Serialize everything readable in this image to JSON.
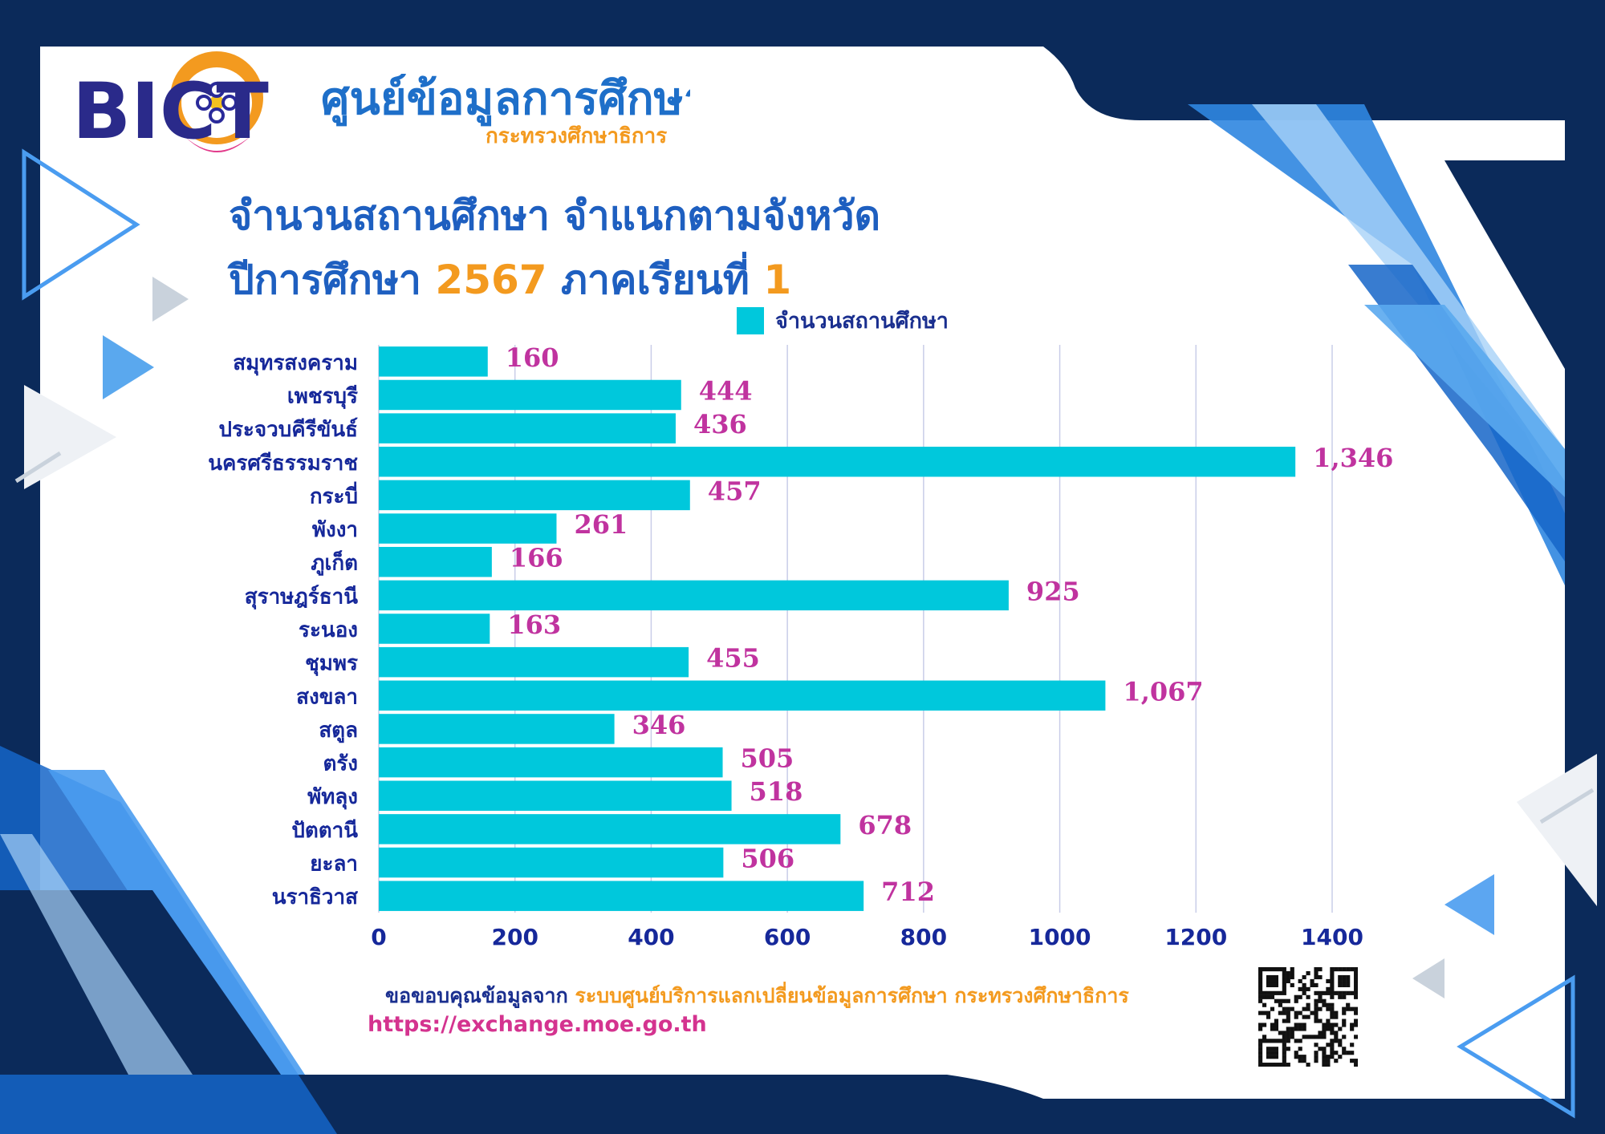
{
  "logos": {
    "bict": "BICT",
    "center_main": "ศูนย์ข้อมูลการศึกษา",
    "center_sub": "กระทรวงศึกษาธิการ"
  },
  "title": {
    "line1": "จำนวนสถานศึกษา จำแนกตามจังหวัด",
    "line2_prefix": "ปีการศึกษา",
    "year": "2567",
    "line2_mid": "ภาคเรียนที่",
    "term": "1"
  },
  "credit": {
    "prefix": "ขอขอบคุณข้อมูลจาก",
    "source": "ระบบศูนย์บริการแลกเปลี่ยนข้อมูลการศึกษา กระทรวงศึกษาธิการ",
    "url": "https://exchange.moe.go.th"
  },
  "colors": {
    "bar": "#00c8dc",
    "value_label": "#c0339f",
    "axis_text": "#16289a",
    "title": "#1e5fc0",
    "accent": "#f39a1f",
    "background": "#0b2a5a"
  },
  "chart_data": {
    "type": "bar",
    "orientation": "horizontal",
    "categories": [
      "สมุทรสงคราม",
      "เพชรบุรี",
      "ประจวบคีรีขันธ์",
      "นครศรีธรรมราช",
      "กระบี่",
      "พังงา",
      "ภูเก็ต",
      "สุราษฎร์ธานี",
      "ระนอง",
      "ชุมพร",
      "สงขลา",
      "สตูล",
      "ตรัง",
      "พัทลุง",
      "ปัตตานี",
      "ยะลา",
      "นราธิวาส"
    ],
    "series": [
      {
        "name": "จำนวนสถานศึกษา",
        "values": [
          160,
          444,
          436,
          1346,
          457,
          261,
          166,
          925,
          163,
          455,
          1067,
          346,
          505,
          518,
          678,
          506,
          712
        ],
        "labels": [
          "160",
          "444",
          "436",
          "1,346",
          "457",
          "261",
          "166",
          "925",
          "163",
          "455",
          "1,067",
          "346",
          "505",
          "518",
          "678",
          "506",
          "712"
        ]
      }
    ],
    "xlim": [
      0,
      1400
    ],
    "xticks": [
      "0",
      "200",
      "400",
      "600",
      "800",
      "1000",
      "1200",
      "1400"
    ],
    "grid": true,
    "legend": "top"
  }
}
